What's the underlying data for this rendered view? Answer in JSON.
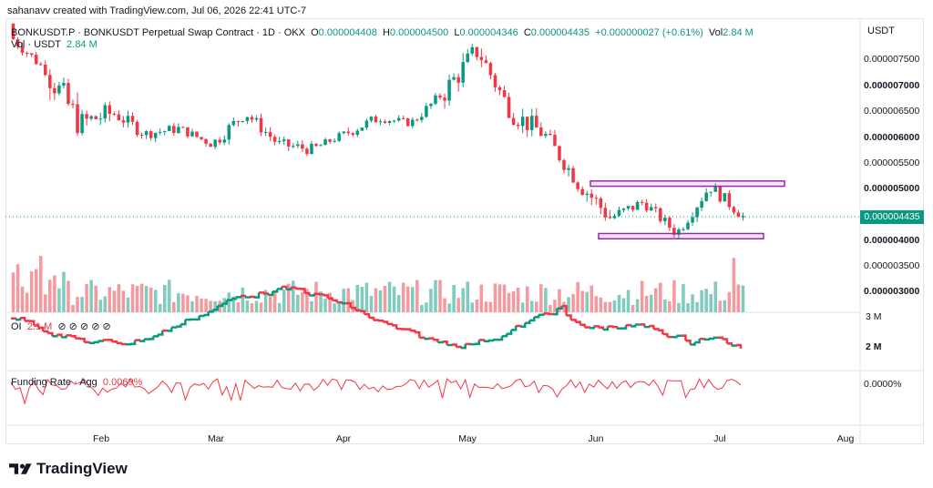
{
  "caption": "sahanavv created with TradingView.com, Jul 06, 2026 22:41 UTC-7",
  "legend": {
    "symbol": "BONKUSDT.P · BONKUSDT Perpetual Swap Contract · 1D · OKX",
    "o_label": "O",
    "o_value": "0.000004408",
    "h_label": "H",
    "h_value": "0.000004500",
    "l_label": "L",
    "l_value": "0.000004346",
    "c_label": "C",
    "c_value": "0.000004435",
    "change": "+0.000000027 (+0.61%)",
    "vol_label": "Vol",
    "vol_value": "2.84 M"
  },
  "vol_legend": {
    "label": "Vol · USDT",
    "value": "2.84 M"
  },
  "oi_legend": {
    "label": "OI",
    "value": "2.1 M",
    "icons": "⊘ ⊘ ⊘ ⊘ ⊘"
  },
  "fr_legend": {
    "label": "Funding Rate · Agg",
    "value": "0.0069%"
  },
  "axis": {
    "currency": "USDT",
    "price_ticks": [
      "0.000007500",
      "0.000007000",
      "0.000006500",
      "0.000006000",
      "0.000005500",
      "0.000005000",
      "0.000004000",
      "0.000003500",
      "0.000003000"
    ],
    "current_price": "0.000004435",
    "oi_ticks": [
      "3 M",
      "2 M"
    ],
    "fr_ticks": [
      "0.0000%"
    ],
    "months": [
      "Feb",
      "Mar",
      "Apr",
      "May",
      "Jun",
      "Jul",
      "Aug"
    ]
  },
  "brand": "TradingView",
  "colors": {
    "up": "#089981",
    "down": "#f23645",
    "vol_up": "#7fcbbd",
    "vol_down": "#f49a9f",
    "box": "#9c27b0"
  },
  "chart_data": {
    "type": "candlestick",
    "symbol": "BONKUSDT.P",
    "timeframe": "1D",
    "ylim": [
      2.6e-06,
      8.2e-06
    ],
    "candles_approx": [
      {
        "date": "Jan 24",
        "o": 8.1e-06,
        "h": 8.1e-06,
        "l": 7.5e-06,
        "c": 7.8e-06
      },
      {
        "date": "Feb 1",
        "o": 7.8e-06,
        "h": 8e-06,
        "l": 7.1e-06,
        "c": 7.2e-06
      },
      {
        "date": "Feb 8",
        "o": 7.1e-06,
        "h": 7.2e-06,
        "l": 5.3e-06,
        "c": 6.2e-06
      },
      {
        "date": "Feb 15",
        "o": 6.2e-06,
        "h": 7e-06,
        "l": 5.9e-06,
        "c": 6.4e-06
      },
      {
        "date": "Feb 22",
        "o": 6.4e-06,
        "h": 6.6e-06,
        "l": 5.8e-06,
        "c": 6e-06
      },
      {
        "date": "Mar 1",
        "o": 6e-06,
        "h": 6.4e-06,
        "l": 5.7e-06,
        "c": 6.1e-06
      },
      {
        "date": "Mar 8",
        "o": 6.1e-06,
        "h": 6.3e-06,
        "l": 5.6e-06,
        "c": 5.8e-06
      },
      {
        "date": "Mar 15",
        "o": 5.8e-06,
        "h": 6.8e-06,
        "l": 5.7e-06,
        "c": 6.4e-06
      },
      {
        "date": "Mar 22",
        "o": 6.4e-06,
        "h": 6.5e-06,
        "l": 5.7e-06,
        "c": 5.8e-06
      },
      {
        "date": "Apr 1",
        "o": 5.8e-06,
        "h": 6e-06,
        "l": 5.5e-06,
        "c": 5.7e-06
      },
      {
        "date": "Apr 8",
        "o": 5.7e-06,
        "h": 6.2e-06,
        "l": 5.6e-06,
        "c": 6e-06
      },
      {
        "date": "Apr 15",
        "o": 6e-06,
        "h": 6.6e-06,
        "l": 5.9e-06,
        "c": 6.3e-06
      },
      {
        "date": "Apr 22",
        "o": 6.3e-06,
        "h": 6.5e-06,
        "l": 6.1e-06,
        "c": 6.2e-06
      },
      {
        "date": "May 1",
        "o": 6.2e-06,
        "h": 7e-06,
        "l": 6.1e-06,
        "c": 6.8e-06
      },
      {
        "date": "May 8",
        "o": 6.8e-06,
        "h": 8.2e-06,
        "l": 6.7e-06,
        "c": 7.6e-06
      },
      {
        "date": "May 15",
        "o": 7.6e-06,
        "h": 7.7e-06,
        "l": 6.3e-06,
        "c": 6.4e-06
      },
      {
        "date": "May 22",
        "o": 6.4e-06,
        "h": 6.5e-06,
        "l": 5.9e-06,
        "c": 6e-06
      },
      {
        "date": "Jun 1",
        "o": 5.8e-06,
        "h": 5.9e-06,
        "l": 5e-06,
        "c": 5.1e-06
      },
      {
        "date": "Jun 8",
        "o": 5.1e-06,
        "h": 5.2e-06,
        "l": 4.1e-06,
        "c": 4.4e-06
      },
      {
        "date": "Jun 15",
        "o": 4.4e-06,
        "h": 5e-06,
        "l": 4.3e-06,
        "c": 4.7e-06
      },
      {
        "date": "Jun 22",
        "o": 4.7e-06,
        "h": 4.8e-06,
        "l": 4e-06,
        "c": 4.1e-06
      },
      {
        "date": "Jul 1",
        "o": 4.1e-06,
        "h": 5.1e-06,
        "l": 4e-06,
        "c": 5e-06
      },
      {
        "date": "Jul 6",
        "o": 4.408e-06,
        "h": 4.5e-06,
        "l": 4.346e-06,
        "c": 4.435e-06
      }
    ],
    "annotations": [
      {
        "type": "rectangle",
        "price_from": 5e-06,
        "price_to": 5.1e-06
      },
      {
        "type": "rectangle",
        "price_from": 4e-06,
        "price_to": 4.1e-06
      }
    ]
  }
}
